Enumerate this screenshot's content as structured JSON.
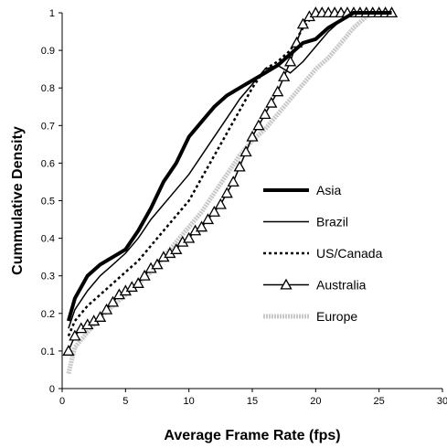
{
  "chart_data": {
    "type": "line",
    "xlabel": "Average Frame Rate (fps)",
    "ylabel": "Cummulative Density",
    "xlim": [
      0,
      30
    ],
    "ylim": [
      0,
      1
    ],
    "xticks": [
      0,
      5,
      10,
      15,
      20,
      25,
      30
    ],
    "yticks": [
      0,
      0.1,
      0.2,
      0.3,
      0.4,
      0.5,
      0.6,
      0.7,
      0.8,
      0.9,
      1
    ],
    "grid": false,
    "legend_position": "center-right",
    "series": [
      {
        "name": "Asia",
        "color": "#000000",
        "style": "thick",
        "points": [
          [
            0.5,
            0.18
          ],
          [
            1,
            0.24
          ],
          [
            2,
            0.3
          ],
          [
            3,
            0.33
          ],
          [
            4,
            0.35
          ],
          [
            5,
            0.37
          ],
          [
            6,
            0.42
          ],
          [
            7,
            0.48
          ],
          [
            8,
            0.55
          ],
          [
            9,
            0.6
          ],
          [
            10,
            0.67
          ],
          [
            11,
            0.71
          ],
          [
            12,
            0.75
          ],
          [
            13,
            0.78
          ],
          [
            14,
            0.8
          ],
          [
            15,
            0.82
          ],
          [
            16,
            0.84
          ],
          [
            17,
            0.86
          ],
          [
            18,
            0.89
          ],
          [
            19,
            0.92
          ],
          [
            20,
            0.93
          ],
          [
            21,
            0.96
          ],
          [
            22,
            0.98
          ],
          [
            23,
            1
          ],
          [
            26,
            1
          ]
        ]
      },
      {
        "name": "Brazil",
        "color": "#000000",
        "style": "thin",
        "points": [
          [
            0.5,
            0.16
          ],
          [
            1,
            0.21
          ],
          [
            2,
            0.26
          ],
          [
            3,
            0.3
          ],
          [
            4,
            0.33
          ],
          [
            5,
            0.36
          ],
          [
            6,
            0.4
          ],
          [
            7,
            0.45
          ],
          [
            8,
            0.49
          ],
          [
            9,
            0.53
          ],
          [
            10,
            0.57
          ],
          [
            11,
            0.62
          ],
          [
            12,
            0.67
          ],
          [
            13,
            0.72
          ],
          [
            14,
            0.77
          ],
          [
            15,
            0.81
          ],
          [
            16,
            0.85
          ],
          [
            17,
            0.86
          ],
          [
            18,
            0.84
          ],
          [
            19,
            0.87
          ],
          [
            20,
            0.91
          ],
          [
            21,
            0.95
          ],
          [
            22,
            0.98
          ],
          [
            23,
            1
          ],
          [
            26,
            1
          ]
        ]
      },
      {
        "name": "US/Canada",
        "color": "#000000",
        "style": "dotted",
        "points": [
          [
            0.5,
            0.14
          ],
          [
            1,
            0.18
          ],
          [
            2,
            0.22
          ],
          [
            3,
            0.25
          ],
          [
            4,
            0.28
          ],
          [
            5,
            0.31
          ],
          [
            6,
            0.34
          ],
          [
            7,
            0.38
          ],
          [
            8,
            0.42
          ],
          [
            9,
            0.46
          ],
          [
            10,
            0.5
          ],
          [
            11,
            0.56
          ],
          [
            12,
            0.62
          ],
          [
            13,
            0.68
          ],
          [
            14,
            0.74
          ],
          [
            15,
            0.8
          ],
          [
            16,
            0.85
          ],
          [
            17,
            0.87
          ],
          [
            18,
            0.9
          ],
          [
            19,
            0.96
          ],
          [
            20,
            1
          ],
          [
            26,
            1
          ]
        ]
      },
      {
        "name": "Australia",
        "color": "#000000",
        "style": "triangle",
        "points": [
          [
            0.5,
            0.1
          ],
          [
            1,
            0.14
          ],
          [
            1.5,
            0.16
          ],
          [
            2,
            0.17
          ],
          [
            2.5,
            0.18
          ],
          [
            3,
            0.19
          ],
          [
            3.5,
            0.21
          ],
          [
            4,
            0.23
          ],
          [
            4.5,
            0.25
          ],
          [
            5,
            0.26
          ],
          [
            5.5,
            0.27
          ],
          [
            6,
            0.28
          ],
          [
            6.5,
            0.3
          ],
          [
            7,
            0.32
          ],
          [
            7.5,
            0.33
          ],
          [
            8,
            0.35
          ],
          [
            8.5,
            0.36
          ],
          [
            9,
            0.37
          ],
          [
            9.5,
            0.39
          ],
          [
            10,
            0.4
          ],
          [
            10.5,
            0.42
          ],
          [
            11,
            0.43
          ],
          [
            11.5,
            0.45
          ],
          [
            12,
            0.47
          ],
          [
            12.5,
            0.49
          ],
          [
            13,
            0.52
          ],
          [
            13.5,
            0.55
          ],
          [
            14,
            0.59
          ],
          [
            14.5,
            0.63
          ],
          [
            15,
            0.67
          ],
          [
            15.5,
            0.7
          ],
          [
            16,
            0.73
          ],
          [
            16.5,
            0.76
          ],
          [
            17,
            0.79
          ],
          [
            17.5,
            0.83
          ],
          [
            18,
            0.87
          ],
          [
            18.5,
            0.92
          ],
          [
            19,
            0.97
          ],
          [
            19.5,
            0.99
          ],
          [
            20,
            1
          ],
          [
            20.5,
            1
          ],
          [
            21,
            1
          ],
          [
            21.5,
            1
          ],
          [
            22,
            1
          ],
          [
            22.5,
            1
          ],
          [
            23,
            1
          ],
          [
            23.5,
            1
          ],
          [
            24,
            1
          ],
          [
            24.5,
            1
          ],
          [
            25,
            1
          ],
          [
            25.5,
            1
          ],
          [
            26,
            1
          ]
        ]
      },
      {
        "name": "Europe",
        "color": "#c8c8c8",
        "style": "gray",
        "points": [
          [
            0.5,
            0.04
          ],
          [
            1,
            0.11
          ],
          [
            2,
            0.15
          ],
          [
            3,
            0.19
          ],
          [
            4,
            0.22
          ],
          [
            5,
            0.25
          ],
          [
            6,
            0.28
          ],
          [
            7,
            0.31
          ],
          [
            8,
            0.35
          ],
          [
            9,
            0.39
          ],
          [
            10,
            0.43
          ],
          [
            11,
            0.47
          ],
          [
            12,
            0.52
          ],
          [
            13,
            0.57
          ],
          [
            14,
            0.62
          ],
          [
            15,
            0.66
          ],
          [
            16,
            0.69
          ],
          [
            17,
            0.73
          ],
          [
            18,
            0.77
          ],
          [
            19,
            0.81
          ],
          [
            20,
            0.85
          ],
          [
            21,
            0.88
          ],
          [
            22,
            0.92
          ],
          [
            23,
            0.96
          ],
          [
            24,
            0.99
          ],
          [
            25,
            1
          ],
          [
            26,
            1
          ]
        ]
      }
    ]
  }
}
